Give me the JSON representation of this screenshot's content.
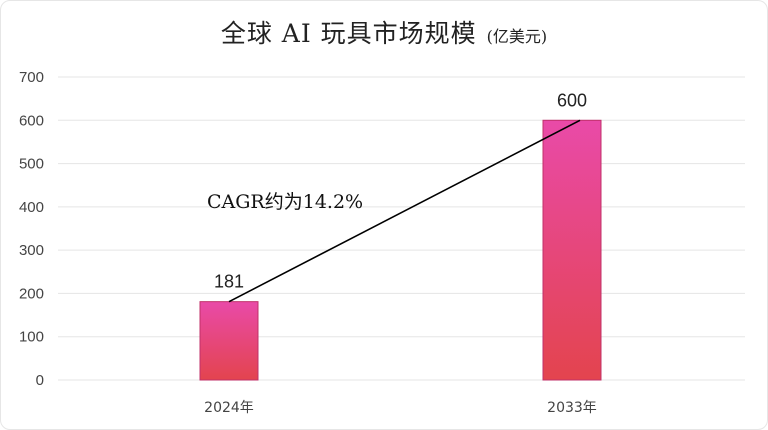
{
  "title": "全球 AI 玩具市场规模",
  "subtitle": "(亿美元)",
  "chart_data": {
    "type": "bar",
    "categories": [
      "2024年",
      "2033年"
    ],
    "values": [
      181,
      600
    ],
    "data_labels": [
      "181",
      "600"
    ],
    "ylim": [
      0,
      700
    ],
    "yticks": [
      0,
      100,
      200,
      300,
      400,
      500,
      600,
      700
    ],
    "ytick_labels": [
      "0",
      "100",
      "200",
      "300",
      "400",
      "500",
      "600",
      "700"
    ],
    "grid": true,
    "legend": "none",
    "annotation": {
      "text": "CAGR约为14.2%",
      "trend_line": {
        "from": [
          0,
          181
        ],
        "to": [
          1,
          600
        ]
      }
    },
    "colors": {
      "bar_top": "#e94aa8",
      "bar_bottom": "#e3444e",
      "bar_edge": "#c0306a",
      "grid": "#e5e5e5",
      "trend_line": "#000000"
    }
  }
}
